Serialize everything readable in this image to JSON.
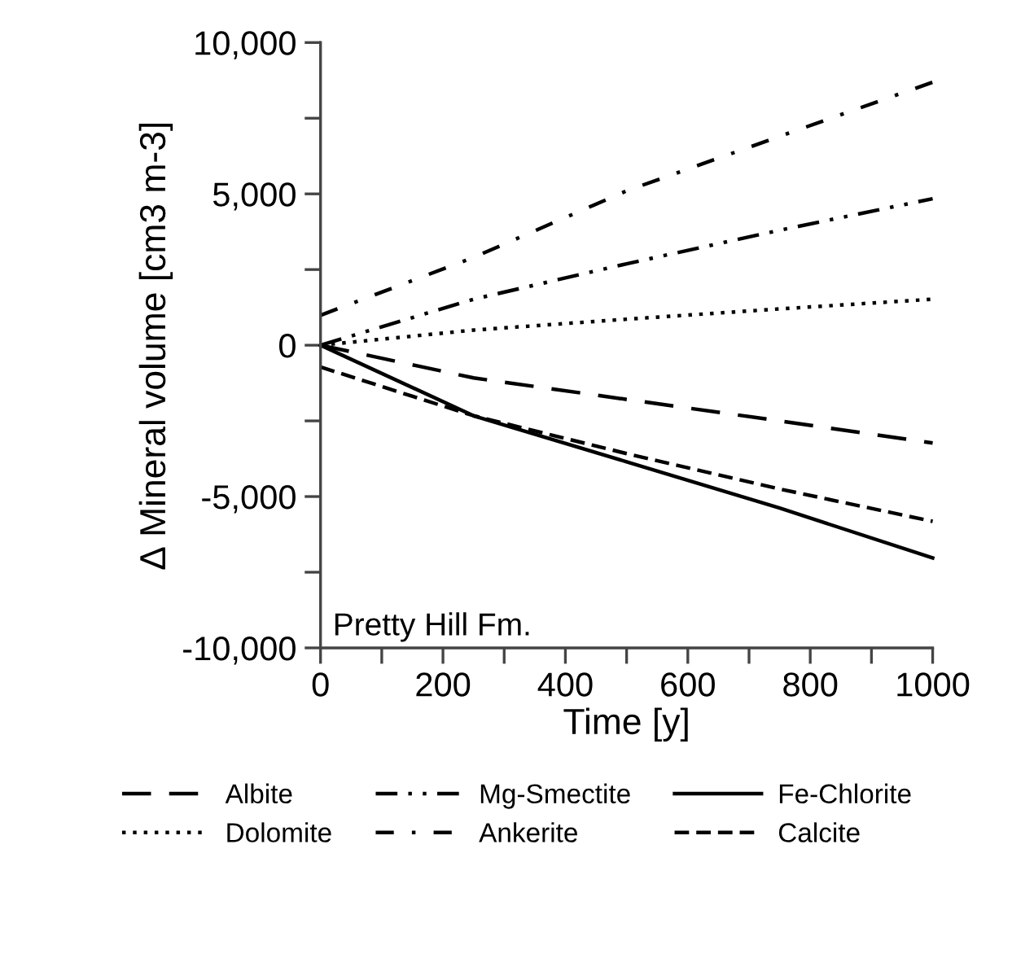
{
  "chart_data": {
    "type": "line",
    "xlabel": "Time [y]",
    "ylabel": "∆ Mineral volume [cm3 m-3]",
    "annotations": [
      "Pretty Hill Fm."
    ],
    "xlim": [
      0,
      1000
    ],
    "ylim": [
      -10000,
      10000
    ],
    "xticks": [
      0,
      {
        "value": 100,
        "label": null
      },
      200,
      {
        "value": 300,
        "label": null
      },
      400,
      {
        "value": 500,
        "label": null
      },
      600,
      {
        "value": 700,
        "label": null
      },
      800,
      {
        "value": 900,
        "label": null
      },
      1000
    ],
    "yticks": [
      {
        "value": -10000,
        "label": "-10,000"
      },
      {
        "value": -7500,
        "label": null
      },
      {
        "value": -5000,
        "label": "-5,000"
      },
      {
        "value": -2500,
        "label": null
      },
      0,
      {
        "value": 2500,
        "label": null
      },
      {
        "value": 5000,
        "label": "5,000"
      },
      {
        "value": 7500,
        "label": null
      },
      {
        "value": 10000,
        "label": "10,000"
      }
    ],
    "grid": false,
    "legend": "bottom",
    "marker": "none",
    "series": [
      {
        "name": "Albite",
        "color": "#000000",
        "line_style": "longdash",
        "x": [
          0,
          250,
          500,
          750,
          1000
        ],
        "values": [
          0,
          -1080,
          -1790,
          -2500,
          -3230
        ]
      },
      {
        "name": "Dolomite",
        "color": "#000000",
        "line_style": "dotted",
        "x": [
          0,
          250,
          500,
          750,
          1000
        ],
        "values": [
          0,
          500,
          860,
          1200,
          1520
        ]
      },
      {
        "name": "Mg-Smectite",
        "color": "#000000",
        "line_style": "dashdotdot",
        "x": [
          0,
          250,
          500,
          750,
          1000
        ],
        "values": [
          0,
          1520,
          2690,
          3800,
          4840
        ]
      },
      {
        "name": "Ankerite",
        "color": "#000000",
        "line_style": "dashdot",
        "x": [
          0,
          250,
          500,
          750,
          1000
        ],
        "values": [
          990,
          2900,
          5100,
          6900,
          8690
        ]
      },
      {
        "name": "Fe-Chlorite",
        "color": "#000000",
        "line_style": "solid",
        "x": [
          0,
          250,
          500,
          750,
          1000
        ],
        "values": [
          0,
          -2330,
          -3850,
          -5380,
          -7030
        ]
      },
      {
        "name": "Calcite",
        "color": "#000000",
        "line_style": "dashed",
        "x": [
          0,
          250,
          500,
          750,
          1000
        ],
        "values": [
          -720,
          -2330,
          -3580,
          -4750,
          -5820
        ]
      }
    ]
  }
}
